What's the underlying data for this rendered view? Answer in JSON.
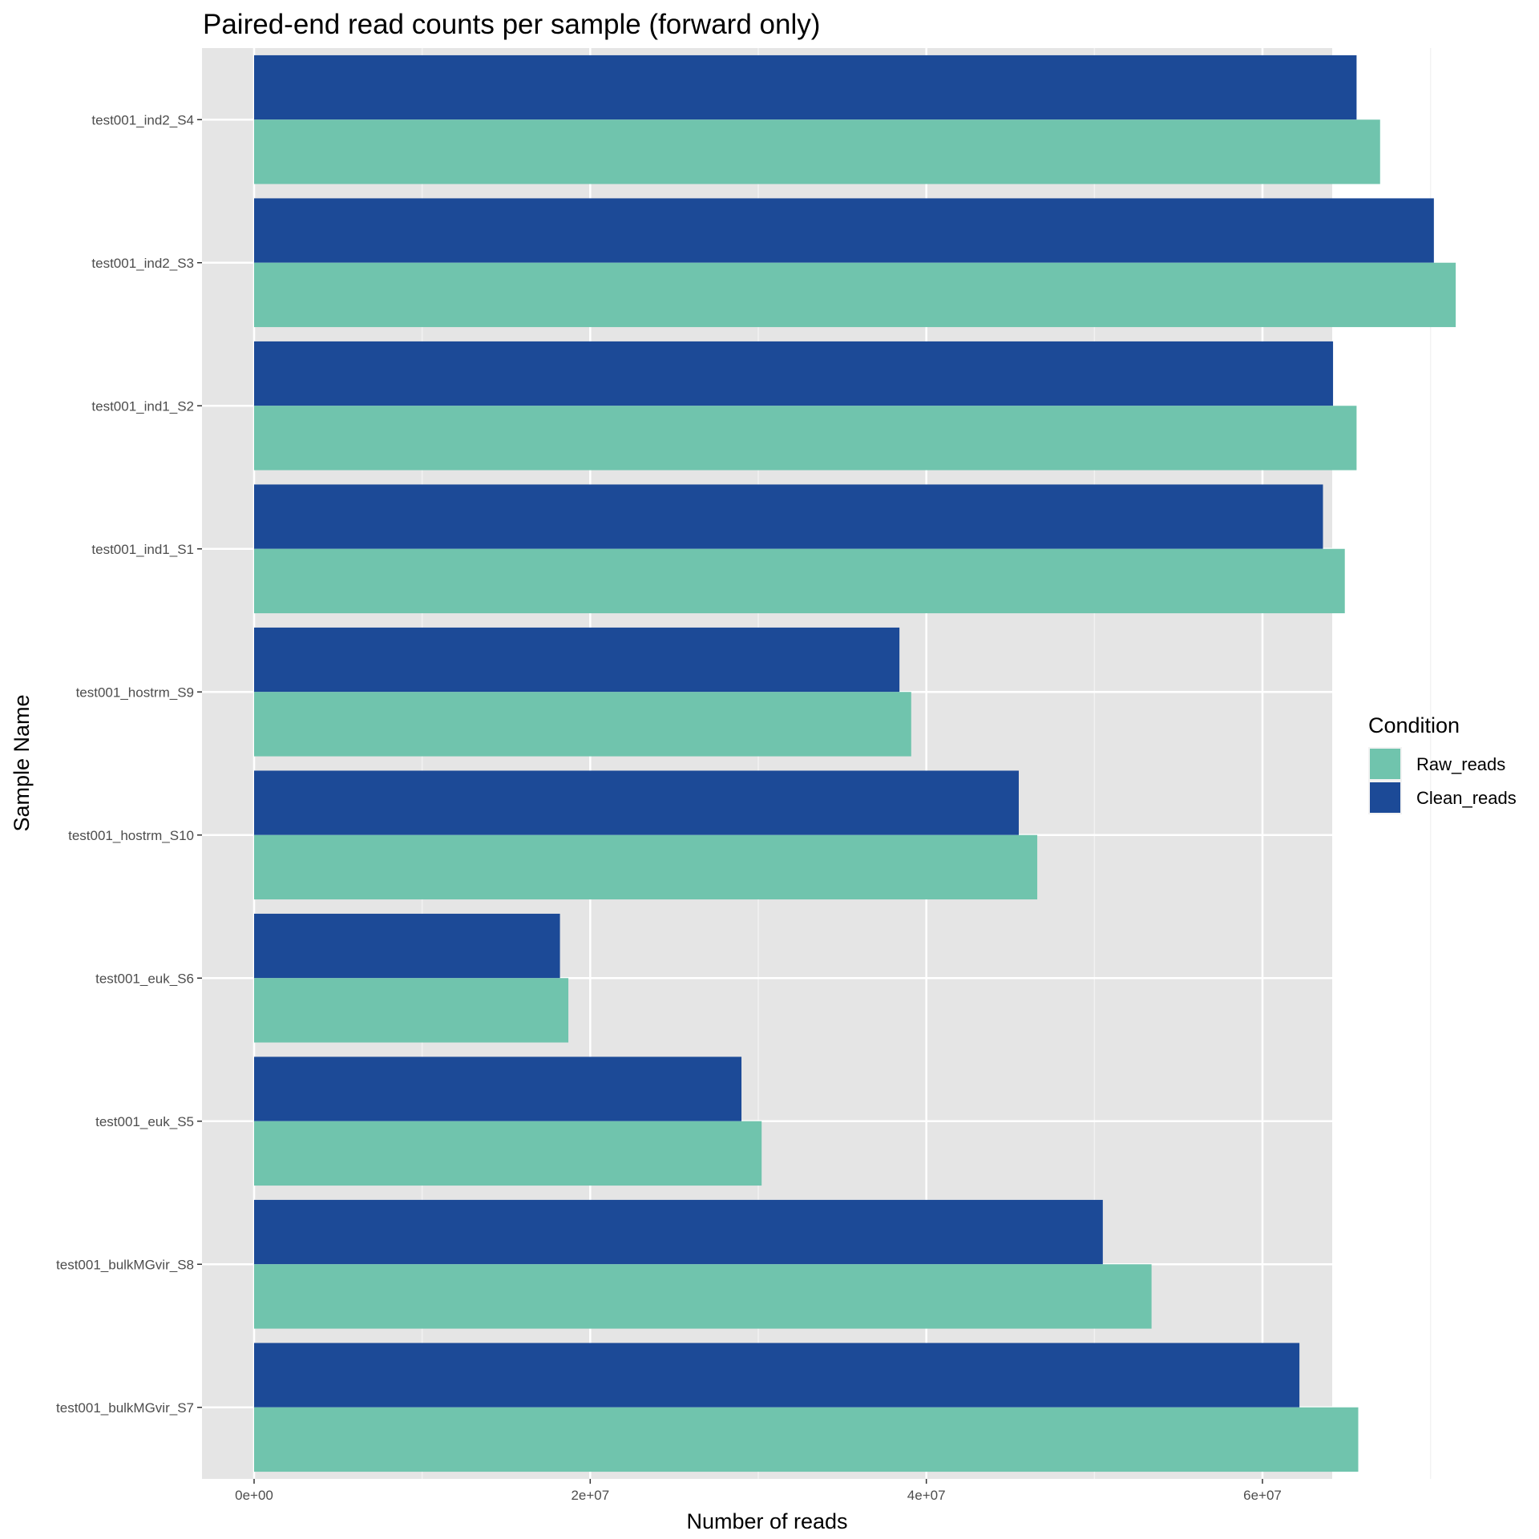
{
  "chart_data": {
    "type": "bar",
    "orientation": "horizontal",
    "title": "Paired-end read counts per sample (forward only)",
    "xlabel": "Number of reads",
    "ylabel": "Sample Name",
    "xlim": [
      -3600000,
      75000000
    ],
    "x_ticks": [
      0,
      20000000,
      40000000,
      60000000
    ],
    "x_tick_labels": [
      "0e+00",
      "2e+07",
      "4e+07",
      "6e+07"
    ],
    "grid": true,
    "legend": {
      "title": "Condition",
      "position": "right"
    },
    "categories": [
      "test001_ind2_S4",
      "test001_ind2_S3",
      "test001_ind1_S2",
      "test001_ind1_S1",
      "test001_hostrm_S9",
      "test001_hostrm_S10",
      "test001_euk_S6",
      "test001_euk_S5",
      "test001_bulkMGvir_S8",
      "test001_bulkMGvir_S7"
    ],
    "series": [
      {
        "name": "Raw_reads",
        "color": "#70c4ad",
        "values": [
          67000000,
          71500000,
          65600000,
          64900000,
          39100000,
          46600000,
          18700000,
          30200000,
          53400000,
          65700000
        ]
      },
      {
        "name": "Clean_reads",
        "color": "#1c4a97",
        "values": [
          65600000,
          70200000,
          64200000,
          63600000,
          38400000,
          45500000,
          18200000,
          29000000,
          50500000,
          62200000
        ]
      }
    ]
  }
}
